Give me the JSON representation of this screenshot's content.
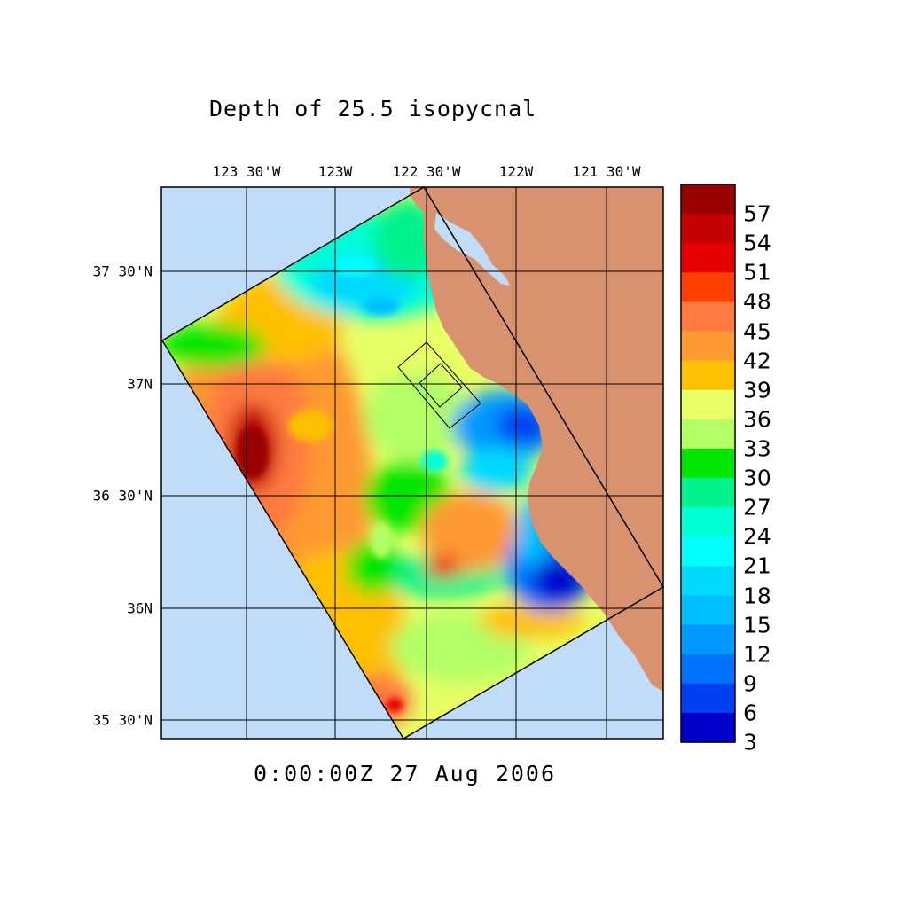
{
  "title": "Depth of 25.5 isopycnal",
  "timestamp": "0:00:00Z  27 Aug 2006",
  "lon_labels": [
    "123 30'W",
    "123W",
    "122 30'W",
    "122W",
    "121 30'W"
  ],
  "lat_labels": [
    "37 30'N",
    "37N",
    "36 30'N",
    "36N",
    "35 30'N"
  ],
  "colorbar": {
    "labels": [
      "57",
      "54",
      "51",
      "48",
      "45",
      "42",
      "39",
      "36",
      "33",
      "30",
      "27",
      "24",
      "21",
      "18",
      "15",
      "12",
      "9",
      "6",
      "3"
    ],
    "colors": [
      "#990000",
      "#c40000",
      "#e60000",
      "#ff4000",
      "#ff7a40",
      "#ff9933",
      "#ffc000",
      "#e8ff66",
      "#b3ff66",
      "#00e600",
      "#00f28c",
      "#00ffd5",
      "#00ffff",
      "#00d9ff",
      "#00bfff",
      "#0099ff",
      "#0073ff",
      "#0040f0",
      "#0000cc"
    ]
  },
  "colors": {
    "ocean": "#c0dcf8",
    "land": "#d89270",
    "bay": "#c0dcf8"
  }
}
